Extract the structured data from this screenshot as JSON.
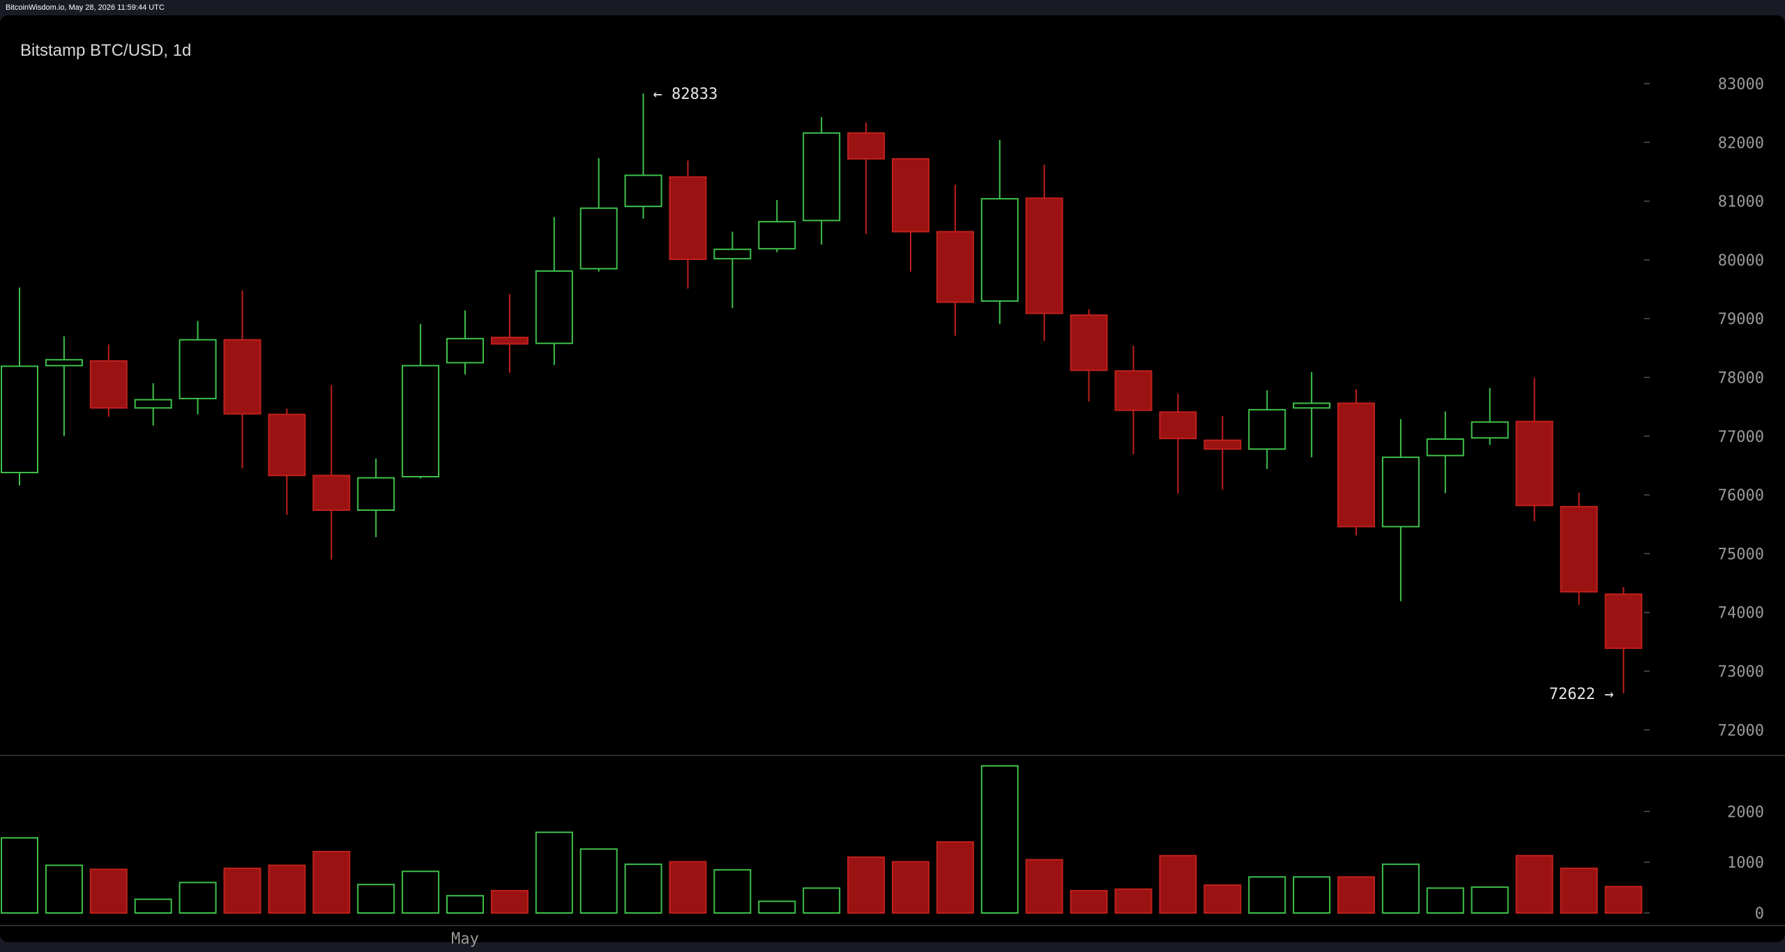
{
  "header": {
    "source_line": "BitcoinWisdom.io, May 28, 2026 11:59:44 UTC"
  },
  "chart_title": "Bitstamp BTC/USD, 1d",
  "colors": {
    "up": "#3ec14a",
    "down": "#9b1212",
    "down_border": "#c0201c",
    "axis_text": "#9a9a9a",
    "background": "#000000"
  },
  "chart_data": {
    "type": "candlestick",
    "title": "Bitstamp BTC/USD, 1d",
    "timeframe": "1d",
    "x_labels": [
      {
        "index": 10,
        "label": "May"
      }
    ],
    "price_axis": {
      "ticks": [
        72000,
        73000,
        74000,
        75000,
        76000,
        77000,
        78000,
        79000,
        80000,
        81000,
        82000,
        83000
      ],
      "tick_labels": [
        "72000",
        "73000",
        "74000",
        "75000",
        "76000",
        "77000",
        "78000",
        "79000",
        "80000",
        "81000",
        "82000",
        "83000"
      ],
      "range": [
        71500,
        84000
      ]
    },
    "volume_axis": {
      "ticks": [
        0,
        1000,
        2000
      ],
      "tick_labels": [
        "0",
        "1000",
        "2000"
      ],
      "range": [
        0,
        3000
      ]
    },
    "annotations": {
      "high": {
        "index": 14,
        "value": 82833,
        "label": "← 82833"
      },
      "low": {
        "index": 36,
        "value": 72622,
        "label": "72622 →"
      }
    },
    "candles": [
      {
        "o": 76380,
        "h": 79530,
        "l": 76160,
        "c": 78190,
        "v": 1480
      },
      {
        "o": 78200,
        "h": 78700,
        "l": 77000,
        "c": 78300,
        "v": 940
      },
      {
        "o": 78280,
        "h": 78560,
        "l": 77330,
        "c": 77480,
        "v": 860
      },
      {
        "o": 77480,
        "h": 77900,
        "l": 77180,
        "c": 77620,
        "v": 270
      },
      {
        "o": 77640,
        "h": 78960,
        "l": 77370,
        "c": 78640,
        "v": 600
      },
      {
        "o": 78640,
        "h": 79480,
        "l": 76450,
        "c": 77380,
        "v": 880
      },
      {
        "o": 77370,
        "h": 77470,
        "l": 75660,
        "c": 76330,
        "v": 940
      },
      {
        "o": 76330,
        "h": 77870,
        "l": 74900,
        "c": 75740,
        "v": 1210
      },
      {
        "o": 75740,
        "h": 76620,
        "l": 75280,
        "c": 76290,
        "v": 560
      },
      {
        "o": 76310,
        "h": 78910,
        "l": 76280,
        "c": 78200,
        "v": 820
      },
      {
        "o": 78250,
        "h": 79140,
        "l": 78050,
        "c": 78660,
        "v": 340
      },
      {
        "o": 78680,
        "h": 79420,
        "l": 78080,
        "c": 78570,
        "v": 440
      },
      {
        "o": 78580,
        "h": 80730,
        "l": 78210,
        "c": 79810,
        "v": 1590
      },
      {
        "o": 79850,
        "h": 81730,
        "l": 79800,
        "c": 80880,
        "v": 1260
      },
      {
        "o": 80910,
        "h": 82833,
        "l": 80700,
        "c": 81440,
        "v": 960
      },
      {
        "o": 81410,
        "h": 81690,
        "l": 79510,
        "c": 80010,
        "v": 1010
      },
      {
        "o": 80020,
        "h": 80480,
        "l": 79180,
        "c": 80180,
        "v": 850
      },
      {
        "o": 80190,
        "h": 81020,
        "l": 80130,
        "c": 80650,
        "v": 230
      },
      {
        "o": 80670,
        "h": 82430,
        "l": 80260,
        "c": 82160,
        "v": 490
      },
      {
        "o": 82160,
        "h": 82340,
        "l": 80440,
        "c": 81720,
        "v": 1100
      },
      {
        "o": 81720,
        "h": 81720,
        "l": 79800,
        "c": 80480,
        "v": 1010
      },
      {
        "o": 80480,
        "h": 81280,
        "l": 78710,
        "c": 79280,
        "v": 1400
      },
      {
        "o": 79300,
        "h": 82040,
        "l": 78910,
        "c": 81040,
        "v": 2900
      },
      {
        "o": 81050,
        "h": 81620,
        "l": 78620,
        "c": 79090,
        "v": 1050
      },
      {
        "o": 79060,
        "h": 79160,
        "l": 77590,
        "c": 78120,
        "v": 440
      },
      {
        "o": 78110,
        "h": 78540,
        "l": 76690,
        "c": 77440,
        "v": 470
      },
      {
        "o": 77410,
        "h": 77720,
        "l": 76020,
        "c": 76960,
        "v": 1130
      },
      {
        "o": 76930,
        "h": 77340,
        "l": 76090,
        "c": 76780,
        "v": 550
      },
      {
        "o": 76780,
        "h": 77780,
        "l": 76440,
        "c": 77450,
        "v": 710
      },
      {
        "o": 77480,
        "h": 78090,
        "l": 76640,
        "c": 77560,
        "v": 710
      },
      {
        "o": 77560,
        "h": 77800,
        "l": 75310,
        "c": 75460,
        "v": 710
      },
      {
        "o": 75460,
        "h": 77290,
        "l": 74190,
        "c": 76640,
        "v": 960
      },
      {
        "o": 76670,
        "h": 77420,
        "l": 76030,
        "c": 76950,
        "v": 490
      },
      {
        "o": 76970,
        "h": 77820,
        "l": 76850,
        "c": 77240,
        "v": 510
      },
      {
        "o": 77250,
        "h": 77990,
        "l": 75550,
        "c": 75820,
        "v": 1130
      },
      {
        "o": 75800,
        "h": 76040,
        "l": 74130,
        "c": 74350,
        "v": 880
      },
      {
        "o": 74310,
        "h": 74430,
        "l": 72622,
        "c": 73390,
        "v": 520
      }
    ]
  }
}
